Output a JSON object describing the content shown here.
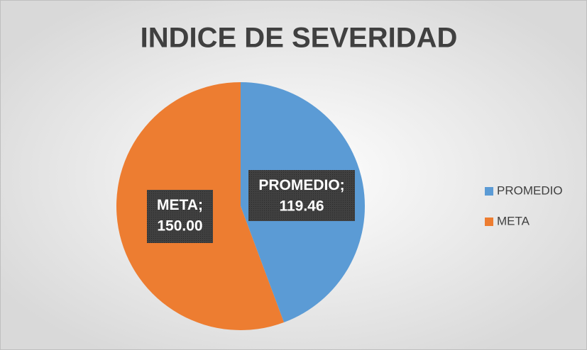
{
  "chart_data": {
    "type": "pie",
    "title": "INDICE DE SEVERIDAD",
    "categories": [
      "PROMEDIO",
      "META"
    ],
    "values": [
      119.46,
      150.0
    ],
    "value_labels": [
      "119.46",
      "150.00"
    ],
    "label_separator": ";",
    "colors": [
      "#5b9bd5",
      "#ed7d31"
    ],
    "legend": "right"
  }
}
